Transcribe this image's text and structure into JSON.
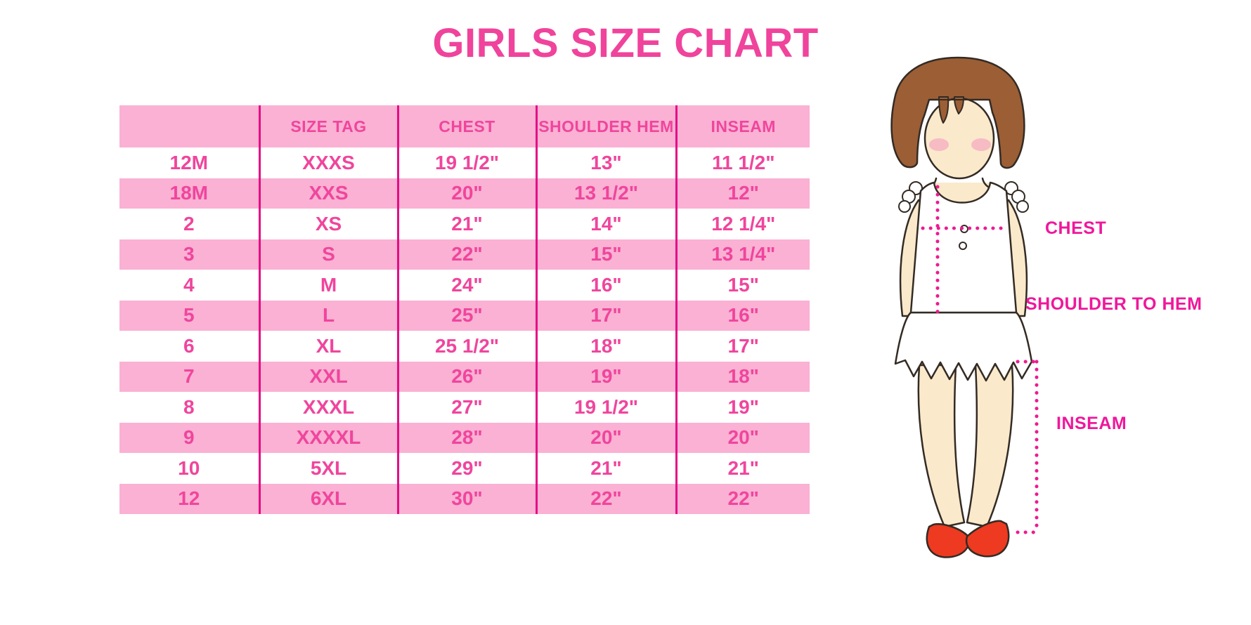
{
  "header": {
    "title": "GIRLS SIZE CHART"
  },
  "chart_data": {
    "type": "table",
    "title": "GIRLS SIZE CHART",
    "columns": [
      "",
      "SIZE TAG",
      "CHEST",
      "SHOULDER HEM",
      "INSEAM"
    ],
    "rows": [
      [
        "12M",
        "XXXS",
        "19 1/2\"",
        "13\"",
        "11 1/2\""
      ],
      [
        "18M",
        "XXS",
        "20\"",
        "13 1/2\"",
        "12\""
      ],
      [
        "2",
        "XS",
        "21\"",
        "14\"",
        "12 1/4\""
      ],
      [
        "3",
        "S",
        "22\"",
        "15\"",
        "13 1/4\""
      ],
      [
        "4",
        "M",
        "24\"",
        "16\"",
        "15\""
      ],
      [
        "5",
        "L",
        "25\"",
        "17\"",
        "16\""
      ],
      [
        "6",
        "XL",
        "25 1/2\"",
        "18\"",
        "17\""
      ],
      [
        "7",
        "XXL",
        "26\"",
        "19\"",
        "18\""
      ],
      [
        "8",
        "XXXL",
        "27\"",
        "19 1/2\"",
        "19\""
      ],
      [
        "9",
        "XXXXL",
        "28\"",
        "20\"",
        "20\""
      ],
      [
        "10",
        "5XL",
        "29\"",
        "21\"",
        "21\""
      ],
      [
        "12",
        "6XL",
        "30\"",
        "22\"",
        "22\""
      ]
    ],
    "layout": {
      "alternating_row_fill": true,
      "gridlines": "vertical-only"
    }
  },
  "diagram": {
    "labels": {
      "chest": "CHEST",
      "shoulder_to_hem": "SHOULDER TO HEM",
      "inseam": "INSEAM"
    }
  },
  "colors": {
    "title_pink": "#F0439C",
    "cell_text_pink": "#F0459D",
    "row_pink": "#FAB1D3",
    "grid_line_magenta": "#E50D86",
    "label_magenta": "#F0179B",
    "dotted_line_magenta": "#EE1A90",
    "hair_brown": "#9C5E35",
    "skin": "#FBE9CC",
    "blush": "#F6AFC2",
    "shoe_red": "#ED3A20"
  }
}
